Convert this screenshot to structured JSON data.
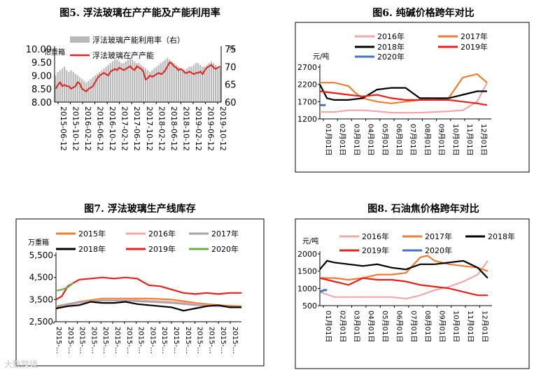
{
  "chart_data": [
    {
      "id": "fig5",
      "type": "bar+line",
      "title": "图5. 浮法玻璃在产产能及产能利用率",
      "left_unit": "亿重箱",
      "right_unit": "%",
      "legend": [
        "浮法玻璃产能利用率（右）",
        "浮法玻璃在产产能"
      ],
      "left_ticks": [
        "8.00",
        "8.50",
        "9.00",
        "9.50",
        "10.00"
      ],
      "right_ticks": [
        "60",
        "65",
        "70",
        "75"
      ],
      "ylim_left": [
        8.0,
        10.0
      ],
      "ylim_right": [
        60,
        75
      ],
      "x_ticks": [
        "2015-06-12",
        "2015-10-12",
        "2016-02-12",
        "2016-06-12",
        "2016-10-12",
        "2017-02-12",
        "2017-06-12",
        "2017-10-12",
        "2018-02-12",
        "2018-06-12",
        "2018-10-12",
        "2019-02-12",
        "2019-06-12",
        "2019-10-12"
      ],
      "series": [
        {
          "name": "浮法玻璃产能利用率（右）",
          "axis": "right",
          "kind": "bar",
          "color": "#b8b8b8",
          "values": [
            67.5,
            68.5,
            69.0,
            69.5,
            70.0,
            69.0,
            68.5,
            69.0,
            68.5,
            68.0,
            67.5,
            67.0,
            66.5,
            66.0,
            65.5,
            66.0,
            66.5,
            67.0,
            67.5,
            68.0,
            68.5,
            69.0,
            69.5,
            70.0,
            70.5,
            71.0,
            71.5,
            72.0,
            72.0,
            71.5,
            71.0,
            71.0,
            71.5,
            72.0,
            72.5,
            72.0,
            71.5,
            71.0,
            71.0,
            70.5,
            70.0,
            69.5,
            69.0,
            68.5,
            69.0,
            69.5,
            70.0,
            70.5,
            71.0,
            71.5,
            72.0,
            72.5,
            72.0,
            71.5,
            71.0,
            70.5,
            70.0,
            69.5,
            69.0,
            69.0,
            69.5,
            70.0,
            70.0,
            70.5,
            71.0,
            71.0,
            70.5,
            70.0,
            70.0,
            70.5,
            71.0,
            71.5,
            71.0,
            70.5,
            70.0,
            70.0
          ]
        },
        {
          "name": "浮法玻璃在产产能",
          "axis": "left",
          "kind": "line",
          "color": "#e8201e",
          "values": [
            8.5,
            8.65,
            8.75,
            8.6,
            8.65,
            8.6,
            8.6,
            8.5,
            8.55,
            8.6,
            8.75,
            8.7,
            8.5,
            8.45,
            8.4,
            8.5,
            8.55,
            8.6,
            8.75,
            8.9,
            9.0,
            9.05,
            9.1,
            9.05,
            9.0,
            9.15,
            9.2,
            9.25,
            9.2,
            9.3,
            9.25,
            9.2,
            9.25,
            9.3,
            9.35,
            9.25,
            9.2,
            9.35,
            9.3,
            9.25,
            9.15,
            8.85,
            8.9,
            9.0,
            8.95,
            9.0,
            9.05,
            9.1,
            9.05,
            9.1,
            9.2,
            9.35,
            9.5,
            9.45,
            9.35,
            9.3,
            9.2,
            9.25,
            9.2,
            9.1,
            9.1,
            9.15,
            9.1,
            9.05,
            9.1,
            9.1,
            9.15,
            9.05,
            9.2,
            9.3,
            9.35,
            9.4,
            9.3,
            9.25,
            9.3,
            9.35
          ]
        }
      ]
    },
    {
      "id": "fig6",
      "type": "line",
      "title": "图6. 纯碱价格跨年对比",
      "ylabel": "元/吨",
      "y_ticks": [
        "1200",
        "1700",
        "2200",
        "2700"
      ],
      "ylim": [
        1200,
        2700
      ],
      "x_ticks": [
        "01月01日",
        "02月01日",
        "03月01日",
        "04月01日",
        "05月01日",
        "06月01日",
        "07月01日",
        "08月01日",
        "09月01日",
        "10月01日",
        "11月01日",
        "12月01日"
      ],
      "legend": [
        "2016年",
        "2017年",
        "2018年",
        "2019年",
        "2020年"
      ],
      "series": [
        {
          "name": "2016年",
          "color": "#f4a6aa",
          "x": [
            0,
            1,
            2,
            3,
            4,
            5,
            6,
            7,
            8,
            9,
            10,
            11,
            11.7
          ],
          "values": [
            1400,
            1400,
            1450,
            1450,
            1420,
            1380,
            1380,
            1380,
            1400,
            1420,
            1450,
            1700,
            2250
          ]
        },
        {
          "name": "2017年",
          "color": "#ed7d31",
          "x": [
            0,
            1,
            2,
            2.5,
            3,
            4,
            5,
            6,
            7,
            8,
            9,
            10,
            11,
            11.7
          ],
          "values": [
            2250,
            2250,
            2150,
            1950,
            1800,
            1700,
            1650,
            1700,
            1750,
            1750,
            1800,
            2400,
            2500,
            2250
          ]
        },
        {
          "name": "2018年",
          "color": "#000000",
          "x": [
            0,
            0.5,
            1,
            2,
            3,
            4,
            5,
            6,
            7,
            8,
            9,
            10,
            11,
            11.7
          ],
          "values": [
            2200,
            1800,
            1750,
            1750,
            1800,
            2050,
            2100,
            2100,
            1800,
            1800,
            1800,
            1900,
            2000,
            2000
          ]
        },
        {
          "name": "2019年",
          "color": "#e8201e",
          "x": [
            0,
            1,
            2,
            3,
            4,
            5,
            6,
            7,
            8,
            9,
            10,
            11,
            11.7
          ],
          "values": [
            2000,
            1950,
            1900,
            1850,
            1900,
            1800,
            1750,
            1750,
            1750,
            1750,
            1700,
            1650,
            1600
          ]
        },
        {
          "name": "2020年",
          "color": "#4472c4",
          "x": [
            0,
            0.4
          ],
          "values": [
            1600,
            1600
          ]
        }
      ]
    },
    {
      "id": "fig7",
      "type": "line",
      "title": "图7. 浮法玻璃生产线库存",
      "ylabel": "万重箱",
      "y_ticks": [
        "2,500",
        "3,500",
        "4,500",
        "5,500"
      ],
      "ylim": [
        2500,
        5500
      ],
      "x_ticks": [
        "2015-…",
        "2015-…",
        "2015-…",
        "2015-…",
        "2015-…",
        "2015-…",
        "2015-…",
        "2015-…",
        "2015-…",
        "2015-…",
        "2015-…",
        "2015-…",
        "2015-…",
        "2015-…",
        "2015-…",
        "2015-…"
      ],
      "legend": [
        "2015年",
        "2016年",
        "2017年",
        "2018年",
        "2019年",
        "2020年"
      ],
      "series": [
        {
          "name": "2015年",
          "color": "#ed7d31",
          "x": [
            0,
            2,
            4,
            6,
            8,
            10,
            12,
            14,
            16
          ],
          "values": [
            3150,
            3400,
            3550,
            3550,
            3550,
            3500,
            3350,
            3250,
            3200
          ]
        },
        {
          "name": "2016年",
          "color": "#f4a6aa",
          "x": [
            0,
            2,
            4,
            6,
            8,
            10,
            12,
            14,
            16
          ],
          "values": [
            3100,
            3350,
            3500,
            3500,
            3450,
            3400,
            3300,
            3200,
            3150
          ]
        },
        {
          "name": "2017年",
          "color": "#a5a5a5",
          "x": [
            0,
            2,
            4,
            6,
            8,
            10,
            12,
            14,
            16
          ],
          "values": [
            3200,
            3400,
            3450,
            3450,
            3400,
            3350,
            3250,
            3200,
            3150
          ]
        },
        {
          "name": "2018年",
          "color": "#000000",
          "x": [
            0,
            1,
            2,
            3,
            4,
            5,
            6,
            7,
            8,
            9,
            10,
            11,
            12,
            13,
            14,
            15,
            16
          ],
          "values": [
            3100,
            3200,
            3250,
            3400,
            3350,
            3350,
            3400,
            3300,
            3250,
            3200,
            3150,
            3000,
            3100,
            3200,
            3250,
            3150,
            3150
          ]
        },
        {
          "name": "2019年",
          "color": "#e8201e",
          "x": [
            0,
            0.5,
            1,
            2,
            3,
            4,
            5,
            6,
            7,
            8,
            9,
            10,
            11,
            12,
            13,
            14,
            15,
            16
          ],
          "values": [
            3500,
            3650,
            4100,
            4400,
            4450,
            4500,
            4450,
            4500,
            4450,
            4150,
            4100,
            3950,
            3800,
            3750,
            3800,
            3750,
            3800,
            3800
          ]
        },
        {
          "name": "2020年",
          "color": "#70ad47",
          "x": [
            0,
            0.5,
            1,
            1.5
          ],
          "values": [
            3900,
            3950,
            4050,
            4250
          ]
        }
      ]
    },
    {
      "id": "fig8",
      "type": "line",
      "title": "图8. 石油焦价格跨年对比",
      "ylabel": "元/吨",
      "y_ticks": [
        "500",
        "1000",
        "1500",
        "2000"
      ],
      "ylim": [
        500,
        2000
      ],
      "x_ticks": [
        "01月01日",
        "02月01日",
        "03月01日",
        "04月01日",
        "05月01日",
        "06月01日",
        "07月01日",
        "08月01日",
        "09月01日",
        "10月01日",
        "11月01日",
        "12月01日"
      ],
      "legend": [
        "2016年",
        "2017年",
        "2018年",
        "2019年",
        "2020年"
      ],
      "series": [
        {
          "name": "2016年",
          "color": "#f4a6aa",
          "x": [
            0,
            1,
            2,
            3,
            4,
            5,
            6,
            7,
            8,
            9,
            10,
            11,
            11.7
          ],
          "values": [
            900,
            750,
            750,
            750,
            750,
            750,
            700,
            800,
            950,
            1050,
            1200,
            1400,
            1800
          ]
        },
        {
          "name": "2017年",
          "color": "#ed7d31",
          "x": [
            0,
            1,
            2,
            3,
            4,
            5,
            6,
            7,
            7.5,
            8,
            9,
            10,
            11,
            11.7
          ],
          "values": [
            1300,
            1300,
            1250,
            1300,
            1400,
            1400,
            1450,
            1900,
            1950,
            1800,
            1700,
            1650,
            1600,
            1500
          ]
        },
        {
          "name": "2018年",
          "color": "#000000",
          "x": [
            0,
            0.5,
            1,
            2,
            3,
            4,
            5,
            6,
            7,
            8,
            9,
            10,
            11,
            11.7
          ],
          "values": [
            1550,
            1800,
            1750,
            1700,
            1650,
            1700,
            1600,
            1550,
            1700,
            1700,
            1750,
            1800,
            1600,
            1300
          ]
        },
        {
          "name": "2019年",
          "color": "#e8201e",
          "x": [
            0,
            1,
            2,
            3,
            4,
            5,
            6,
            7,
            8,
            9,
            10,
            11,
            11.7
          ],
          "values": [
            1300,
            1200,
            1100,
            1300,
            1250,
            1250,
            1200,
            1100,
            1050,
            1000,
            900,
            800,
            800
          ]
        },
        {
          "name": "2020年",
          "color": "#4472c4",
          "x": [
            0,
            0.3,
            0.5
          ],
          "values": [
            900,
            950,
            950
          ]
        }
      ]
    }
  ],
  "watermark": "大数跨境"
}
